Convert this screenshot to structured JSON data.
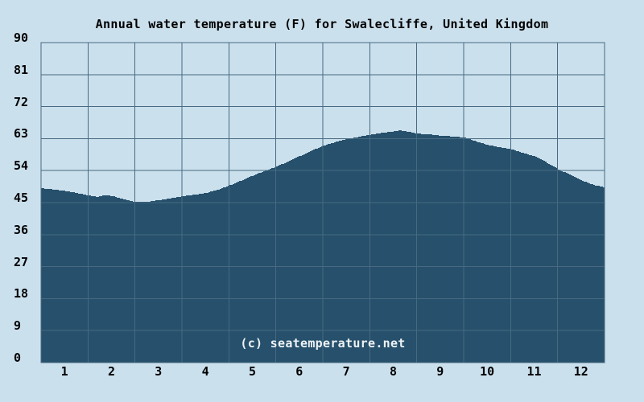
{
  "title": "Annual water temperature (F) for Swalecliffe, United Kingdom",
  "watermark": "(c) seatemperature.net",
  "colors": {
    "background": "#cbe0ed",
    "area_fill": "#26506b",
    "grid_line": "#476a82",
    "plot_border": "#476a82",
    "axis_text": "#000000",
    "watermark_text": "#edf2f6"
  },
  "chart_data": {
    "type": "area",
    "title": "Annual water temperature (F) for Swalecliffe, United Kingdom",
    "xlabel": "",
    "ylabel": "",
    "legend": "none",
    "grid": true,
    "ylim": [
      0,
      90
    ],
    "y_ticks": [
      0,
      9,
      18,
      27,
      36,
      45,
      54,
      63,
      72,
      81,
      90
    ],
    "x_tick_labels": [
      "1",
      "2",
      "3",
      "4",
      "5",
      "6",
      "7",
      "8",
      "9",
      "10",
      "11",
      "12"
    ],
    "xlim_months": [
      0,
      12
    ],
    "monthly_avg_f": {
      "categories": [
        "1",
        "2",
        "3",
        "4",
        "5",
        "6",
        "7",
        "8",
        "9",
        "10",
        "11",
        "12"
      ],
      "values": [
        48.3,
        47.0,
        45.5,
        47.7,
        52.6,
        58.1,
        62.9,
        65.0,
        63.8,
        61.2,
        58.0,
        51.2
      ]
    },
    "annual_min_f": 45.2,
    "annual_max_f": 65.3,
    "series_points": [
      [
        0.0,
        49.0
      ],
      [
        0.25,
        48.7
      ],
      [
        0.5,
        48.3
      ],
      [
        0.75,
        47.7
      ],
      [
        1.0,
        47.0
      ],
      [
        1.18,
        46.6
      ],
      [
        1.37,
        47.1
      ],
      [
        1.55,
        46.7
      ],
      [
        1.75,
        45.9
      ],
      [
        1.95,
        45.3
      ],
      [
        2.25,
        45.2
      ],
      [
        2.5,
        45.7
      ],
      [
        2.75,
        46.2
      ],
      [
        3.0,
        46.8
      ],
      [
        3.25,
        47.2
      ],
      [
        3.5,
        47.7
      ],
      [
        3.75,
        48.6
      ],
      [
        4.0,
        49.8
      ],
      [
        4.25,
        51.2
      ],
      [
        4.5,
        52.6
      ],
      [
        4.75,
        53.9
      ],
      [
        5.0,
        55.1
      ],
      [
        5.25,
        56.6
      ],
      [
        5.5,
        58.1
      ],
      [
        5.75,
        59.6
      ],
      [
        6.0,
        61.0
      ],
      [
        6.25,
        62.0
      ],
      [
        6.5,
        62.9
      ],
      [
        6.75,
        63.5
      ],
      [
        7.0,
        64.1
      ],
      [
        7.25,
        64.6
      ],
      [
        7.5,
        65.0
      ],
      [
        7.62,
        65.3
      ],
      [
        7.78,
        65.0
      ],
      [
        8.0,
        64.4
      ],
      [
        8.25,
        64.2
      ],
      [
        8.5,
        63.8
      ],
      [
        8.75,
        63.6
      ],
      [
        9.0,
        63.3
      ],
      [
        9.25,
        62.2
      ],
      [
        9.5,
        61.2
      ],
      [
        9.75,
        60.6
      ],
      [
        10.0,
        60.0
      ],
      [
        10.25,
        59.0
      ],
      [
        10.5,
        58.0
      ],
      [
        10.75,
        56.3
      ],
      [
        11.0,
        54.4
      ],
      [
        11.25,
        52.8
      ],
      [
        11.5,
        51.2
      ],
      [
        11.75,
        50.0
      ],
      [
        12.0,
        49.2
      ]
    ]
  }
}
